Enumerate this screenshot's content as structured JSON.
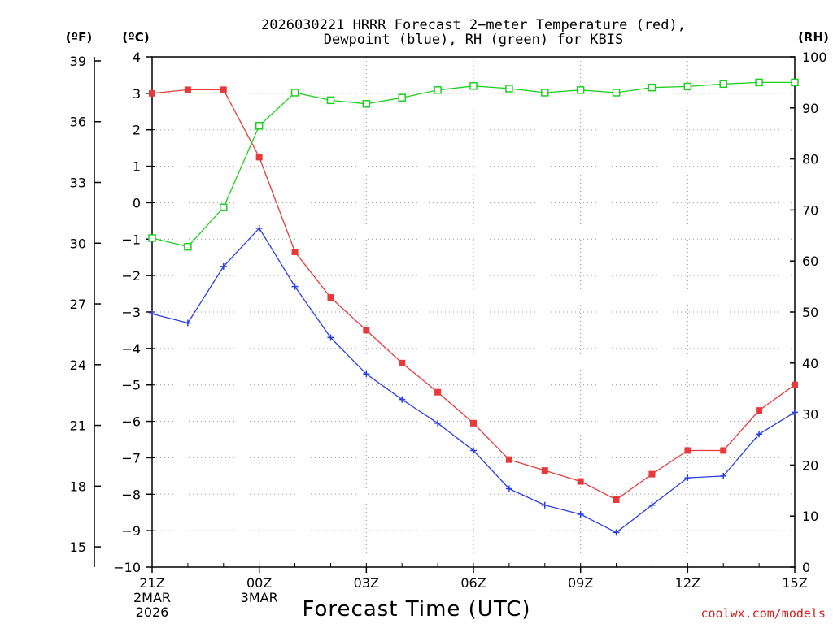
{
  "chart_data": {
    "type": "line",
    "title_line1": "2026030221 HRRR Forecast 2−meter Temperature (red),",
    "title_line2": "Dewpoint (blue), RH (green) for KBIS",
    "xlabel": "Forecast Time (UTC)",
    "credit": "coolwx.com/models",
    "colors": {
      "temperature": "#e83a3a",
      "dewpoint": "#2a3ee8",
      "rh": "#1ed01e",
      "grid": "#9a9a9a"
    },
    "hours": [
      0,
      1,
      2,
      3,
      4,
      5,
      6,
      7,
      8,
      9,
      10,
      11,
      12,
      13,
      14,
      15,
      16,
      17,
      18
    ],
    "x_ticks": [
      {
        "hour": 0,
        "label": "21Z",
        "sub1": "2MAR",
        "sub2": "2026"
      },
      {
        "hour": 3,
        "label": "00Z",
        "sub1": "3MAR",
        "sub2": ""
      },
      {
        "hour": 6,
        "label": "03Z",
        "sub1": "",
        "sub2": ""
      },
      {
        "hour": 9,
        "label": "06Z",
        "sub1": "",
        "sub2": ""
      },
      {
        "hour": 12,
        "label": "09Z",
        "sub1": "",
        "sub2": ""
      },
      {
        "hour": 15,
        "label": "12Z",
        "sub1": "",
        "sub2": ""
      },
      {
        "hour": 18,
        "label": "15Z",
        "sub1": "",
        "sub2": ""
      }
    ],
    "axes": {
      "celsius": {
        "unit": "(ºC)",
        "range": [
          -10,
          4
        ],
        "ticks": [
          "4",
          "3",
          "2",
          "1",
          "0",
          "−1",
          "−2",
          "−3",
          "−4",
          "−5",
          "−6",
          "−7",
          "−8",
          "−9",
          "−10"
        ],
        "values": [
          4,
          3,
          2,
          1,
          0,
          -1,
          -2,
          -3,
          -4,
          -5,
          -6,
          -7,
          -8,
          -9,
          -10
        ]
      },
      "fahrenheit": {
        "unit": "(ºF)",
        "ticks": [
          "39",
          "36",
          "33",
          "30",
          "27",
          "24",
          "21",
          "18",
          "15"
        ],
        "values": [
          39,
          36,
          33,
          30,
          27,
          24,
          21,
          18,
          15
        ]
      },
      "rh": {
        "unit": "(RH)",
        "range": [
          0,
          100
        ],
        "ticks": [
          "100",
          "90",
          "80",
          "70",
          "60",
          "50",
          "40",
          "30",
          "20",
          "10",
          "0"
        ],
        "values": [
          100,
          90,
          80,
          70,
          60,
          50,
          40,
          30,
          20,
          10,
          0
        ]
      }
    },
    "series": [
      {
        "name": "Temperature (°C)",
        "key": "temperature",
        "values": [
          3.0,
          3.1,
          3.1,
          1.25,
          -1.35,
          -2.6,
          -3.5,
          -4.4,
          -5.2,
          -6.05,
          -7.05,
          -7.35,
          -7.65,
          -8.15,
          -7.45,
          -6.8,
          -6.8,
          -5.7,
          -5.0
        ]
      },
      {
        "name": "Dewpoint (°C)",
        "key": "dewpoint",
        "values": [
          -3.05,
          -3.3,
          -1.75,
          -0.7,
          -2.3,
          -3.7,
          -4.7,
          -5.4,
          -6.05,
          -6.8,
          -7.85,
          -8.3,
          -8.55,
          -9.05,
          -8.3,
          -7.55,
          -7.5,
          -6.35,
          -5.75
        ]
      },
      {
        "name": "RH (%)",
        "key": "rh",
        "values": [
          64.5,
          62.8,
          70.5,
          86.5,
          93.0,
          91.5,
          90.8,
          92.0,
          93.5,
          94.3,
          93.8,
          93.0,
          93.5,
          93.0,
          94.0,
          94.2,
          94.7,
          95.0,
          95.0
        ]
      }
    ]
  }
}
